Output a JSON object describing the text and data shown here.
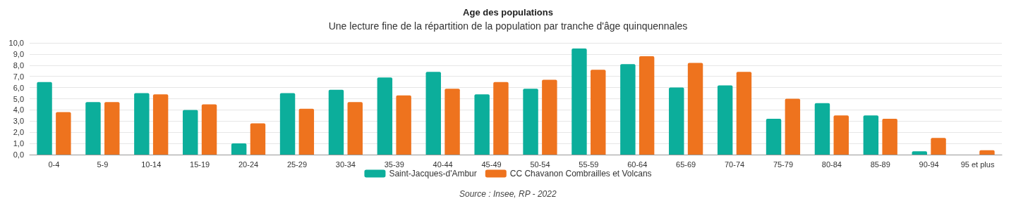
{
  "chart_data": {
    "type": "bar",
    "title": "Age des populations",
    "subtitle": "Une lecture fine de la répartition de la population par tranche d'âge quinquennales",
    "categories": [
      "0-4",
      "5-9",
      "10-14",
      "15-19",
      "20-24",
      "25-29",
      "30-34",
      "35-39",
      "40-44",
      "45-49",
      "50-54",
      "55-59",
      "60-64",
      "65-69",
      "70-74",
      "75-79",
      "80-84",
      "85-89",
      "90-94",
      "95 et plus"
    ],
    "series": [
      {
        "name": "Saint-Jacques-d'Ambur",
        "color": "#0cae9b",
        "values": [
          6.5,
          4.7,
          5.5,
          4.0,
          1.0,
          5.5,
          5.8,
          6.9,
          7.4,
          5.4,
          5.9,
          9.5,
          8.1,
          6.0,
          6.2,
          3.2,
          4.6,
          3.5,
          0.3,
          0
        ]
      },
      {
        "name": "CC Chavanon Combrailles et Volcans",
        "color": "#ee731e",
        "values": [
          3.8,
          4.7,
          5.4,
          4.5,
          2.8,
          4.1,
          4.7,
          5.3,
          5.9,
          6.5,
          6.7,
          7.6,
          8.8,
          8.2,
          7.4,
          5.0,
          3.5,
          3.2,
          1.5,
          0.4
        ]
      }
    ],
    "ylim": [
      0,
      10
    ],
    "yticks": [
      {
        "value": 0,
        "label": "0,0"
      },
      {
        "value": 1,
        "label": "1,0"
      },
      {
        "value": 2,
        "label": "2,0"
      },
      {
        "value": 3,
        "label": "3,0"
      },
      {
        "value": 4,
        "label": "4,0"
      },
      {
        "value": 5,
        "label": "5,0"
      },
      {
        "value": 6,
        "label": "6,0"
      },
      {
        "value": 7,
        "label": "7,0"
      },
      {
        "value": 8,
        "label": "8,0"
      },
      {
        "value": 9,
        "label": "9,0"
      },
      {
        "value": 10,
        "label": "10,0"
      }
    ],
    "grid": "y",
    "legend": "bottom",
    "annotations": [
      "Source : Insee, RP - 2022"
    ]
  }
}
